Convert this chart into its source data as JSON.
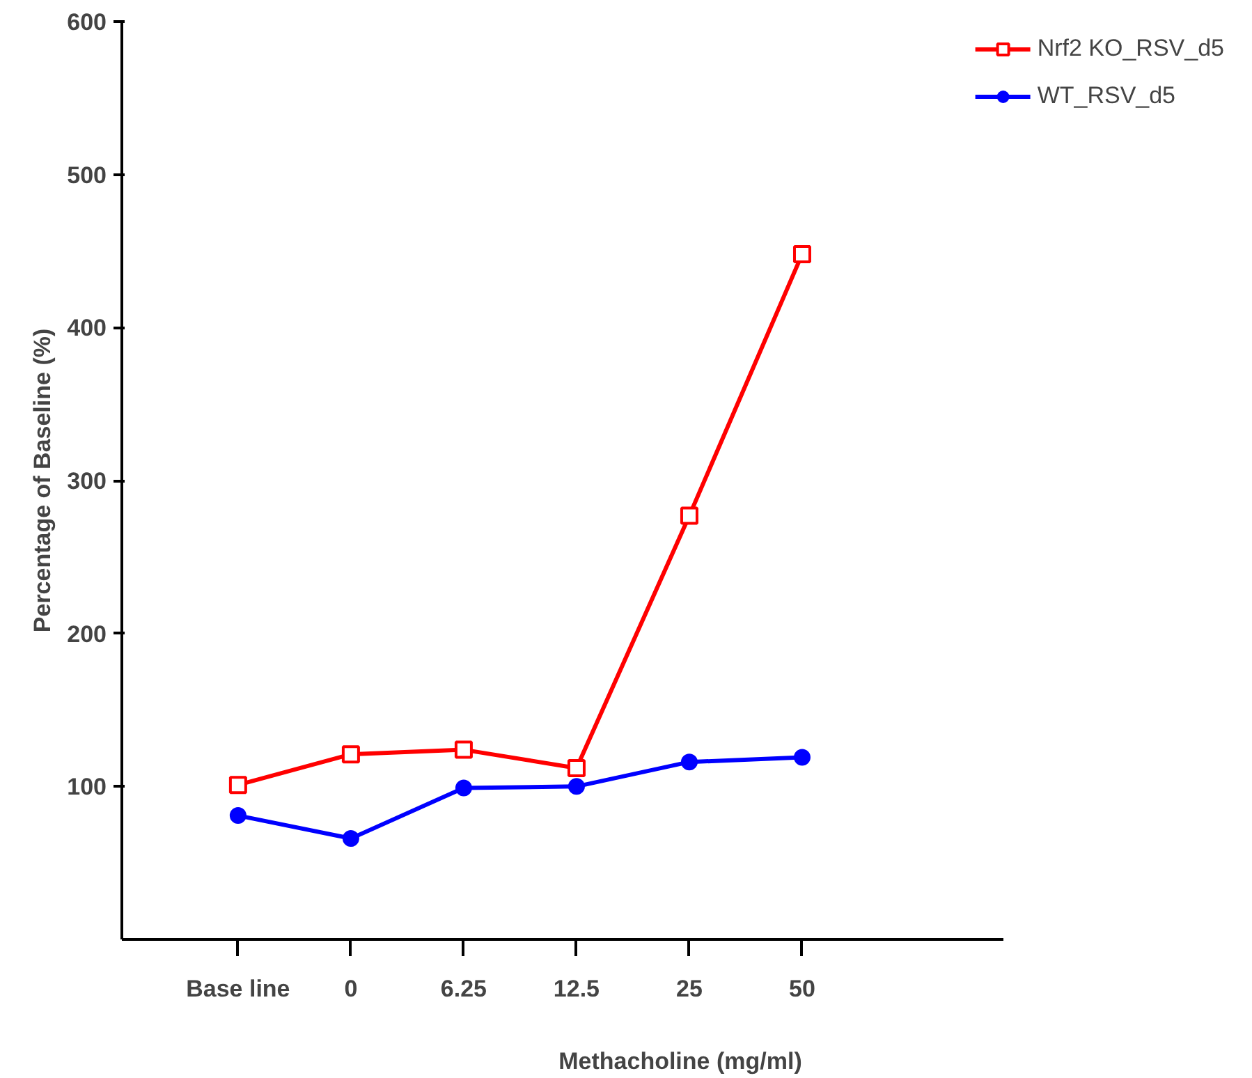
{
  "chart_data": {
    "type": "line",
    "xlabel": "Methacholine (mg/ml)",
    "ylabel": "Percentage of Baseline (%)",
    "categories": [
      "Base line",
      "0",
      "6.25",
      "12.5",
      "25",
      "50"
    ],
    "series": [
      {
        "name": "Nrf2 KO_RSV_d5",
        "color": "#ff0000",
        "marker": "square",
        "values": [
          101,
          121,
          124,
          112,
          277,
          448
        ]
      },
      {
        "name": "WT_RSV_d5",
        "color": "#0000ff",
        "marker": "circle",
        "values": [
          81,
          66,
          99,
          100,
          116,
          119
        ]
      }
    ],
    "ylim": [
      0,
      600
    ],
    "yticks": [
      100,
      200,
      300,
      400,
      500,
      600
    ],
    "grid": false,
    "legend": "top right",
    "line_style": "solid"
  }
}
